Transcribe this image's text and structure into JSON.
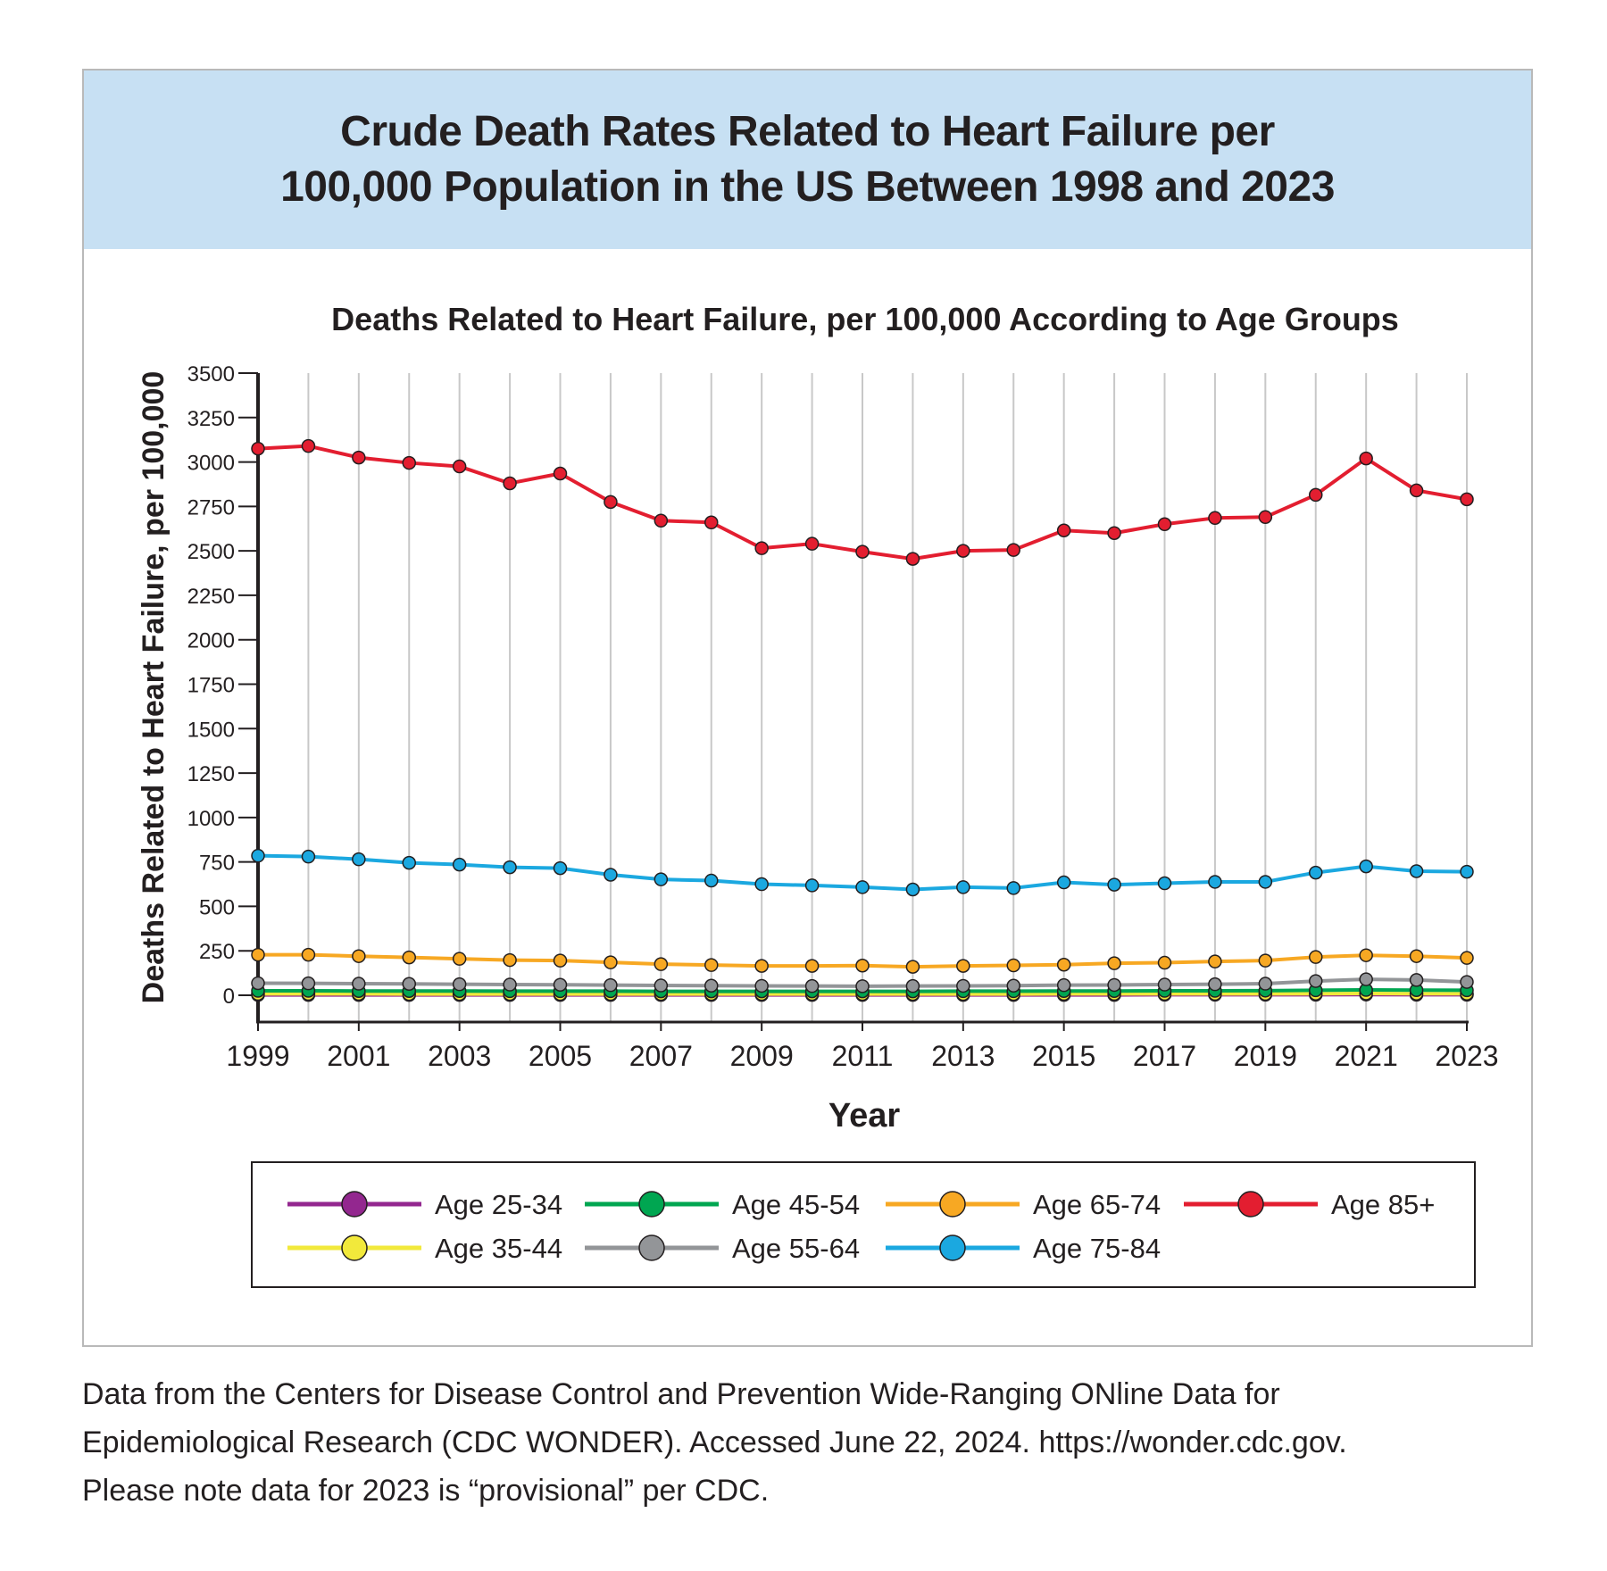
{
  "header": {
    "title_line1": "Crude Death Rates Related to Heart Failure per",
    "title_line2": "100,000 Population in the US Between 1998 and 2023"
  },
  "footer": {
    "line1": "Data from the Centers for Disease Control and Prevention Wide-Ranging ONline Data for",
    "line2": "Epidemiological Research (CDC WONDER). Accessed June 22, 2024. https://wonder.cdc.gov.",
    "line3": "Please note data for 2023 is “provisional” per CDC."
  },
  "chart_data": {
    "type": "line",
    "title": "Deaths Related to Heart Failure, per 100,000 According to Age Groups",
    "xlabel": "Year",
    "ylabel": "Deaths Related to Heart Failure, per 100,000",
    "ylim": [
      0,
      3500
    ],
    "yticks": [
      0,
      250,
      500,
      750,
      1000,
      1250,
      1500,
      1750,
      2000,
      2250,
      2500,
      2750,
      3000,
      3250,
      3500
    ],
    "x": [
      1999,
      2000,
      2001,
      2002,
      2003,
      2004,
      2005,
      2006,
      2007,
      2008,
      2009,
      2010,
      2011,
      2012,
      2013,
      2014,
      2015,
      2016,
      2017,
      2018,
      2019,
      2020,
      2021,
      2022,
      2023
    ],
    "xtick_labels": [
      "1999",
      "2001",
      "2003",
      "2005",
      "2007",
      "2009",
      "2011",
      "2013",
      "2015",
      "2017",
      "2019",
      "2021",
      "2023"
    ],
    "grid": "vertical",
    "legend": "bottom",
    "series": [
      {
        "name": "Age 25-34",
        "color": "#93278f",
        "values": [
          2,
          2,
          2,
          2,
          2,
          2,
          2,
          2,
          2,
          2,
          2,
          2,
          2,
          2,
          2,
          2,
          2,
          2,
          3,
          3,
          3,
          3,
          4,
          3,
          3
        ]
      },
      {
        "name": "Age 35-44",
        "color": "#f2e93b",
        "values": [
          8,
          8,
          8,
          7,
          7,
          7,
          7,
          7,
          7,
          7,
          7,
          7,
          7,
          7,
          7,
          7,
          8,
          8,
          8,
          8,
          8,
          9,
          10,
          9,
          9
        ]
      },
      {
        "name": "Age 45-54",
        "color": "#00a651",
        "values": [
          25,
          25,
          24,
          24,
          24,
          23,
          23,
          23,
          22,
          22,
          22,
          22,
          22,
          22,
          23,
          23,
          24,
          24,
          25,
          25,
          26,
          28,
          30,
          29,
          28
        ]
      },
      {
        "name": "Age 55-64",
        "color": "#939598",
        "values": [
          68,
          67,
          65,
          64,
          62,
          60,
          59,
          57,
          55,
          54,
          53,
          52,
          51,
          52,
          53,
          54,
          57,
          58,
          60,
          62,
          65,
          80,
          90,
          86,
          75
        ]
      },
      {
        "name": "Age 65-74",
        "color": "#f7a823",
        "values": [
          228,
          228,
          220,
          213,
          205,
          198,
          195,
          185,
          175,
          170,
          165,
          165,
          167,
          160,
          165,
          168,
          172,
          180,
          183,
          190,
          195,
          215,
          225,
          220,
          210
        ]
      },
      {
        "name": "Age 75-84",
        "color": "#1ba8e0",
        "values": [
          785,
          780,
          765,
          745,
          735,
          720,
          715,
          678,
          652,
          645,
          625,
          618,
          608,
          595,
          608,
          603,
          635,
          622,
          630,
          638,
          638,
          690,
          725,
          698,
          695
        ]
      },
      {
        "name": "Age 85+",
        "color": "#e31e30",
        "values": [
          3075,
          3090,
          3025,
          2995,
          2975,
          2880,
          2935,
          2775,
          2670,
          2660,
          2515,
          2540,
          2495,
          2455,
          2500,
          2505,
          2615,
          2600,
          2650,
          2685,
          2690,
          2815,
          3020,
          2840,
          2790
        ]
      }
    ]
  }
}
